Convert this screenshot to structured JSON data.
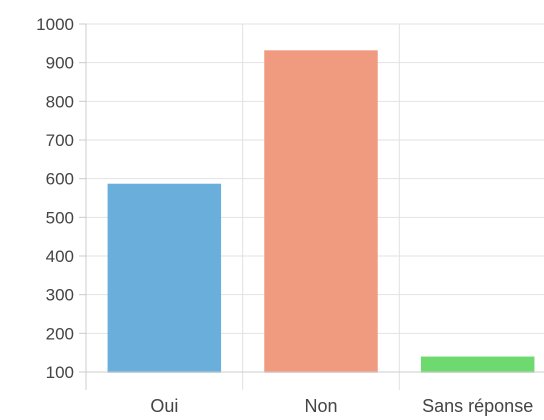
{
  "chart_data": {
    "type": "bar",
    "categories": [
      "Oui",
      "Non",
      "Sans réponse"
    ],
    "values": [
      585,
      930,
      138
    ],
    "colors": [
      "#6aaedc",
      "#f09b80",
      "#6ed96e"
    ],
    "ylim": [
      100,
      1000
    ],
    "yticks": [
      100,
      200,
      300,
      400,
      500,
      600,
      700,
      800,
      900,
      1000
    ],
    "grid": true,
    "title": "",
    "xlabel": "",
    "ylabel": ""
  }
}
